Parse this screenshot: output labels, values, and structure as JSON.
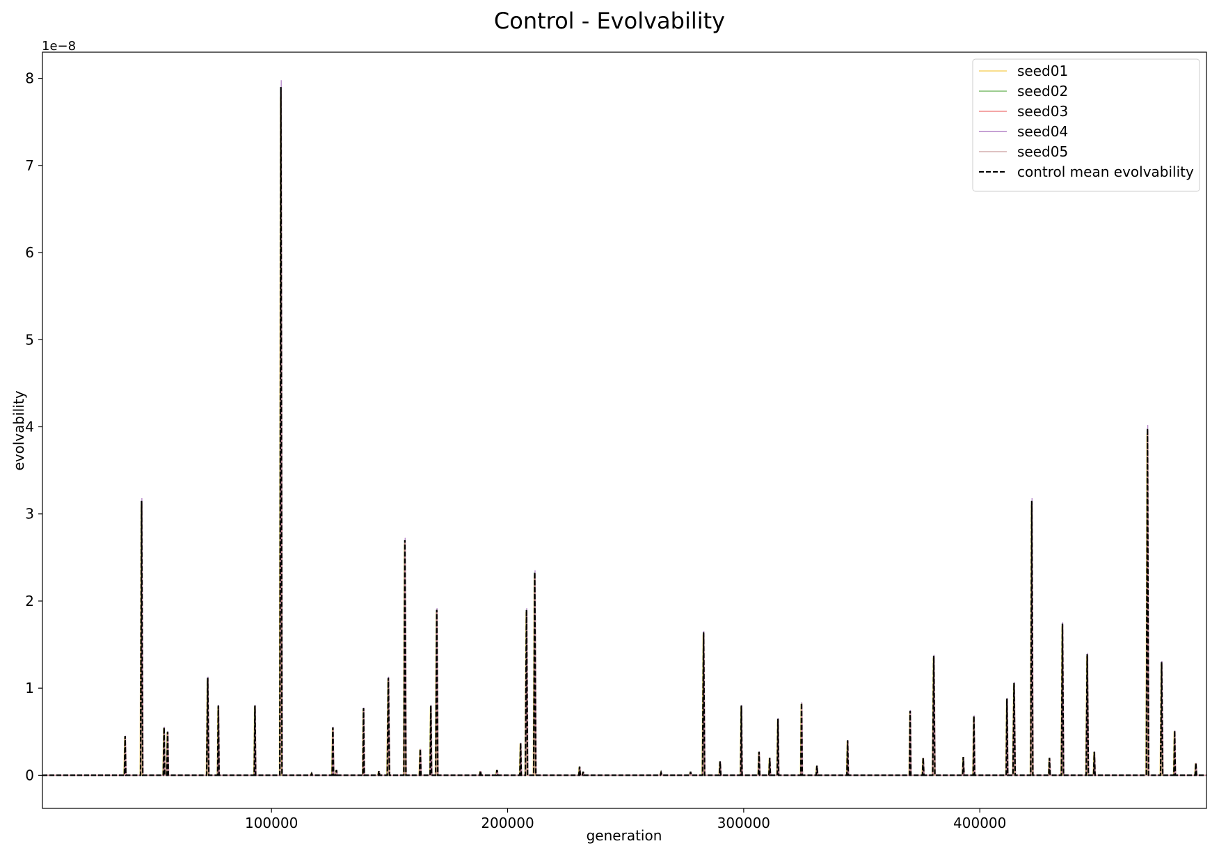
{
  "chart_data": {
    "type": "line",
    "title": "Control - Evolvability",
    "xlabel": "generation",
    "ylabel": "evolvability",
    "offset_text": "1e−8",
    "xlim": [
      3000,
      496000
    ],
    "ylim": [
      -0.38,
      8.3
    ],
    "xticks": [
      100000,
      200000,
      300000,
      400000
    ],
    "xtick_labels": [
      "100000",
      "200000",
      "300000",
      "400000"
    ],
    "yticks": [
      0,
      1,
      2,
      3,
      4,
      5,
      6,
      7,
      8
    ],
    "ytick_labels": [
      "0",
      "1",
      "2",
      "3",
      "4",
      "5",
      "6",
      "7",
      "8"
    ],
    "grid": false,
    "legend_position": "top-right",
    "series": [
      {
        "name": "seed01",
        "color": "#f5c842",
        "style": "solid"
      },
      {
        "name": "seed02",
        "color": "#5aaa46",
        "style": "solid"
      },
      {
        "name": "seed03",
        "color": "#ee6a6a",
        "style": "solid"
      },
      {
        "name": "seed04",
        "color": "#a064b8",
        "style": "solid"
      },
      {
        "name": "seed05",
        "color": "#c79a9a",
        "style": "solid"
      },
      {
        "name": "control mean evolvability",
        "color": "#000000",
        "style": "dashed"
      }
    ],
    "peaks": [
      [
        38000,
        0.45
      ],
      [
        45000,
        3.15
      ],
      [
        54500,
        0.55
      ],
      [
        56000,
        0.5
      ],
      [
        73000,
        1.12
      ],
      [
        77500,
        0.8
      ],
      [
        93000,
        0.8
      ],
      [
        104000,
        7.9
      ],
      [
        117000,
        0.02
      ],
      [
        126000,
        0.55
      ],
      [
        127500,
        0.06
      ],
      [
        139000,
        0.77
      ],
      [
        145500,
        0.05
      ],
      [
        149500,
        1.12
      ],
      [
        156500,
        2.7
      ],
      [
        163000,
        0.3
      ],
      [
        167500,
        0.8
      ],
      [
        170000,
        1.9
      ],
      [
        188500,
        0.05
      ],
      [
        195500,
        0.06
      ],
      [
        205500,
        0.37
      ],
      [
        208000,
        1.9
      ],
      [
        211500,
        2.33
      ],
      [
        230500,
        0.1
      ],
      [
        232000,
        0.04
      ],
      [
        265000,
        0.03
      ],
      [
        277500,
        0.04
      ],
      [
        283000,
        1.64
      ],
      [
        290000,
        0.16
      ],
      [
        299000,
        0.8
      ],
      [
        306500,
        0.27
      ],
      [
        311000,
        0.2
      ],
      [
        314500,
        0.65
      ],
      [
        324500,
        0.83
      ],
      [
        331000,
        0.11
      ],
      [
        344000,
        0.4
      ],
      [
        370500,
        0.74
      ],
      [
        376000,
        0.2
      ],
      [
        380500,
        1.37
      ],
      [
        393000,
        0.21
      ],
      [
        397500,
        0.68
      ],
      [
        411500,
        0.88
      ],
      [
        414500,
        1.06
      ],
      [
        422000,
        3.15
      ],
      [
        429500,
        0.2
      ],
      [
        435000,
        1.74
      ],
      [
        445500,
        1.39
      ],
      [
        448500,
        0.27
      ],
      [
        471000,
        3.98
      ],
      [
        477000,
        1.3
      ],
      [
        482500,
        0.51
      ],
      [
        491500,
        0.14
      ]
    ]
  }
}
